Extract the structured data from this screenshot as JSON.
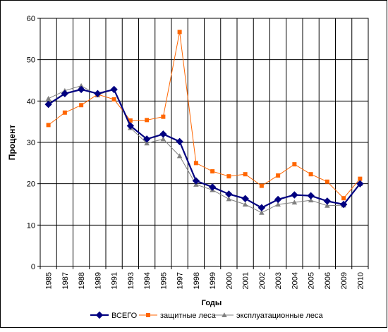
{
  "chart_data": {
    "type": "line",
    "title": "",
    "xlabel": "Годы",
    "ylabel": "Процент",
    "ylim": [
      0,
      60
    ],
    "yticks": [
      0,
      10,
      20,
      30,
      40,
      50,
      60
    ],
    "grid": true,
    "legend_position": "bottom",
    "categories": [
      "1985",
      "1987",
      "1988",
      "1989",
      "1991",
      "1993",
      "1994",
      "1995",
      "1997",
      "1998",
      "1999",
      "2000",
      "2001",
      "2002",
      "2003",
      "2004",
      "2005",
      "2006",
      "2009",
      "2010"
    ],
    "series": [
      {
        "name": "ВСЕГО",
        "color": "#000080",
        "marker": "diamond",
        "values": [
          39.2,
          41.8,
          42.8,
          41.8,
          42.8,
          34.0,
          30.8,
          32.0,
          30.2,
          20.7,
          19.2,
          17.5,
          16.4,
          14.2,
          16.2,
          17.3,
          17.1,
          15.8,
          15.0,
          20.0
        ]
      },
      {
        "name": "защитные леса",
        "color": "#FF6600",
        "marker": "square",
        "values": [
          34.2,
          37.2,
          39.0,
          41.6,
          40.4,
          35.3,
          35.4,
          36.2,
          56.7,
          25.0,
          23.0,
          21.8,
          22.3,
          19.5,
          22.0,
          24.7,
          22.3,
          20.5,
          16.5,
          21.2
        ]
      },
      {
        "name": "эксплуатационные леса",
        "color": "#808080",
        "marker": "triangle",
        "values": [
          40.6,
          42.5,
          43.7,
          41.4,
          43.0,
          33.5,
          29.8,
          30.8,
          26.7,
          19.8,
          18.5,
          16.3,
          15.0,
          13.0,
          15.0,
          15.5,
          16.0,
          14.7,
          14.8,
          20.0
        ]
      }
    ]
  }
}
